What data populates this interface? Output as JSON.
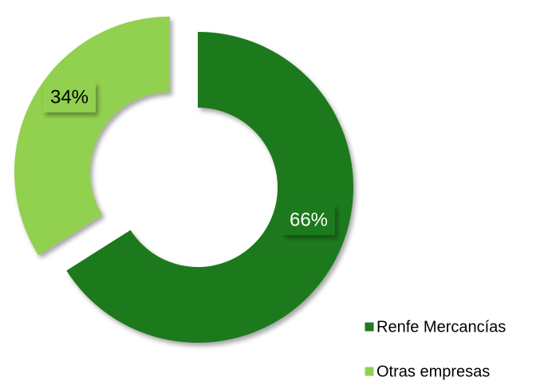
{
  "chart_data": {
    "type": "donut",
    "categories": [
      "Renfe Mercancías",
      "Otras empresas"
    ],
    "values": [
      66,
      34
    ],
    "value_labels": [
      "66%",
      "34%"
    ],
    "colors": [
      "#1f7a1f",
      "#92d050"
    ],
    "legend": "lower right"
  }
}
